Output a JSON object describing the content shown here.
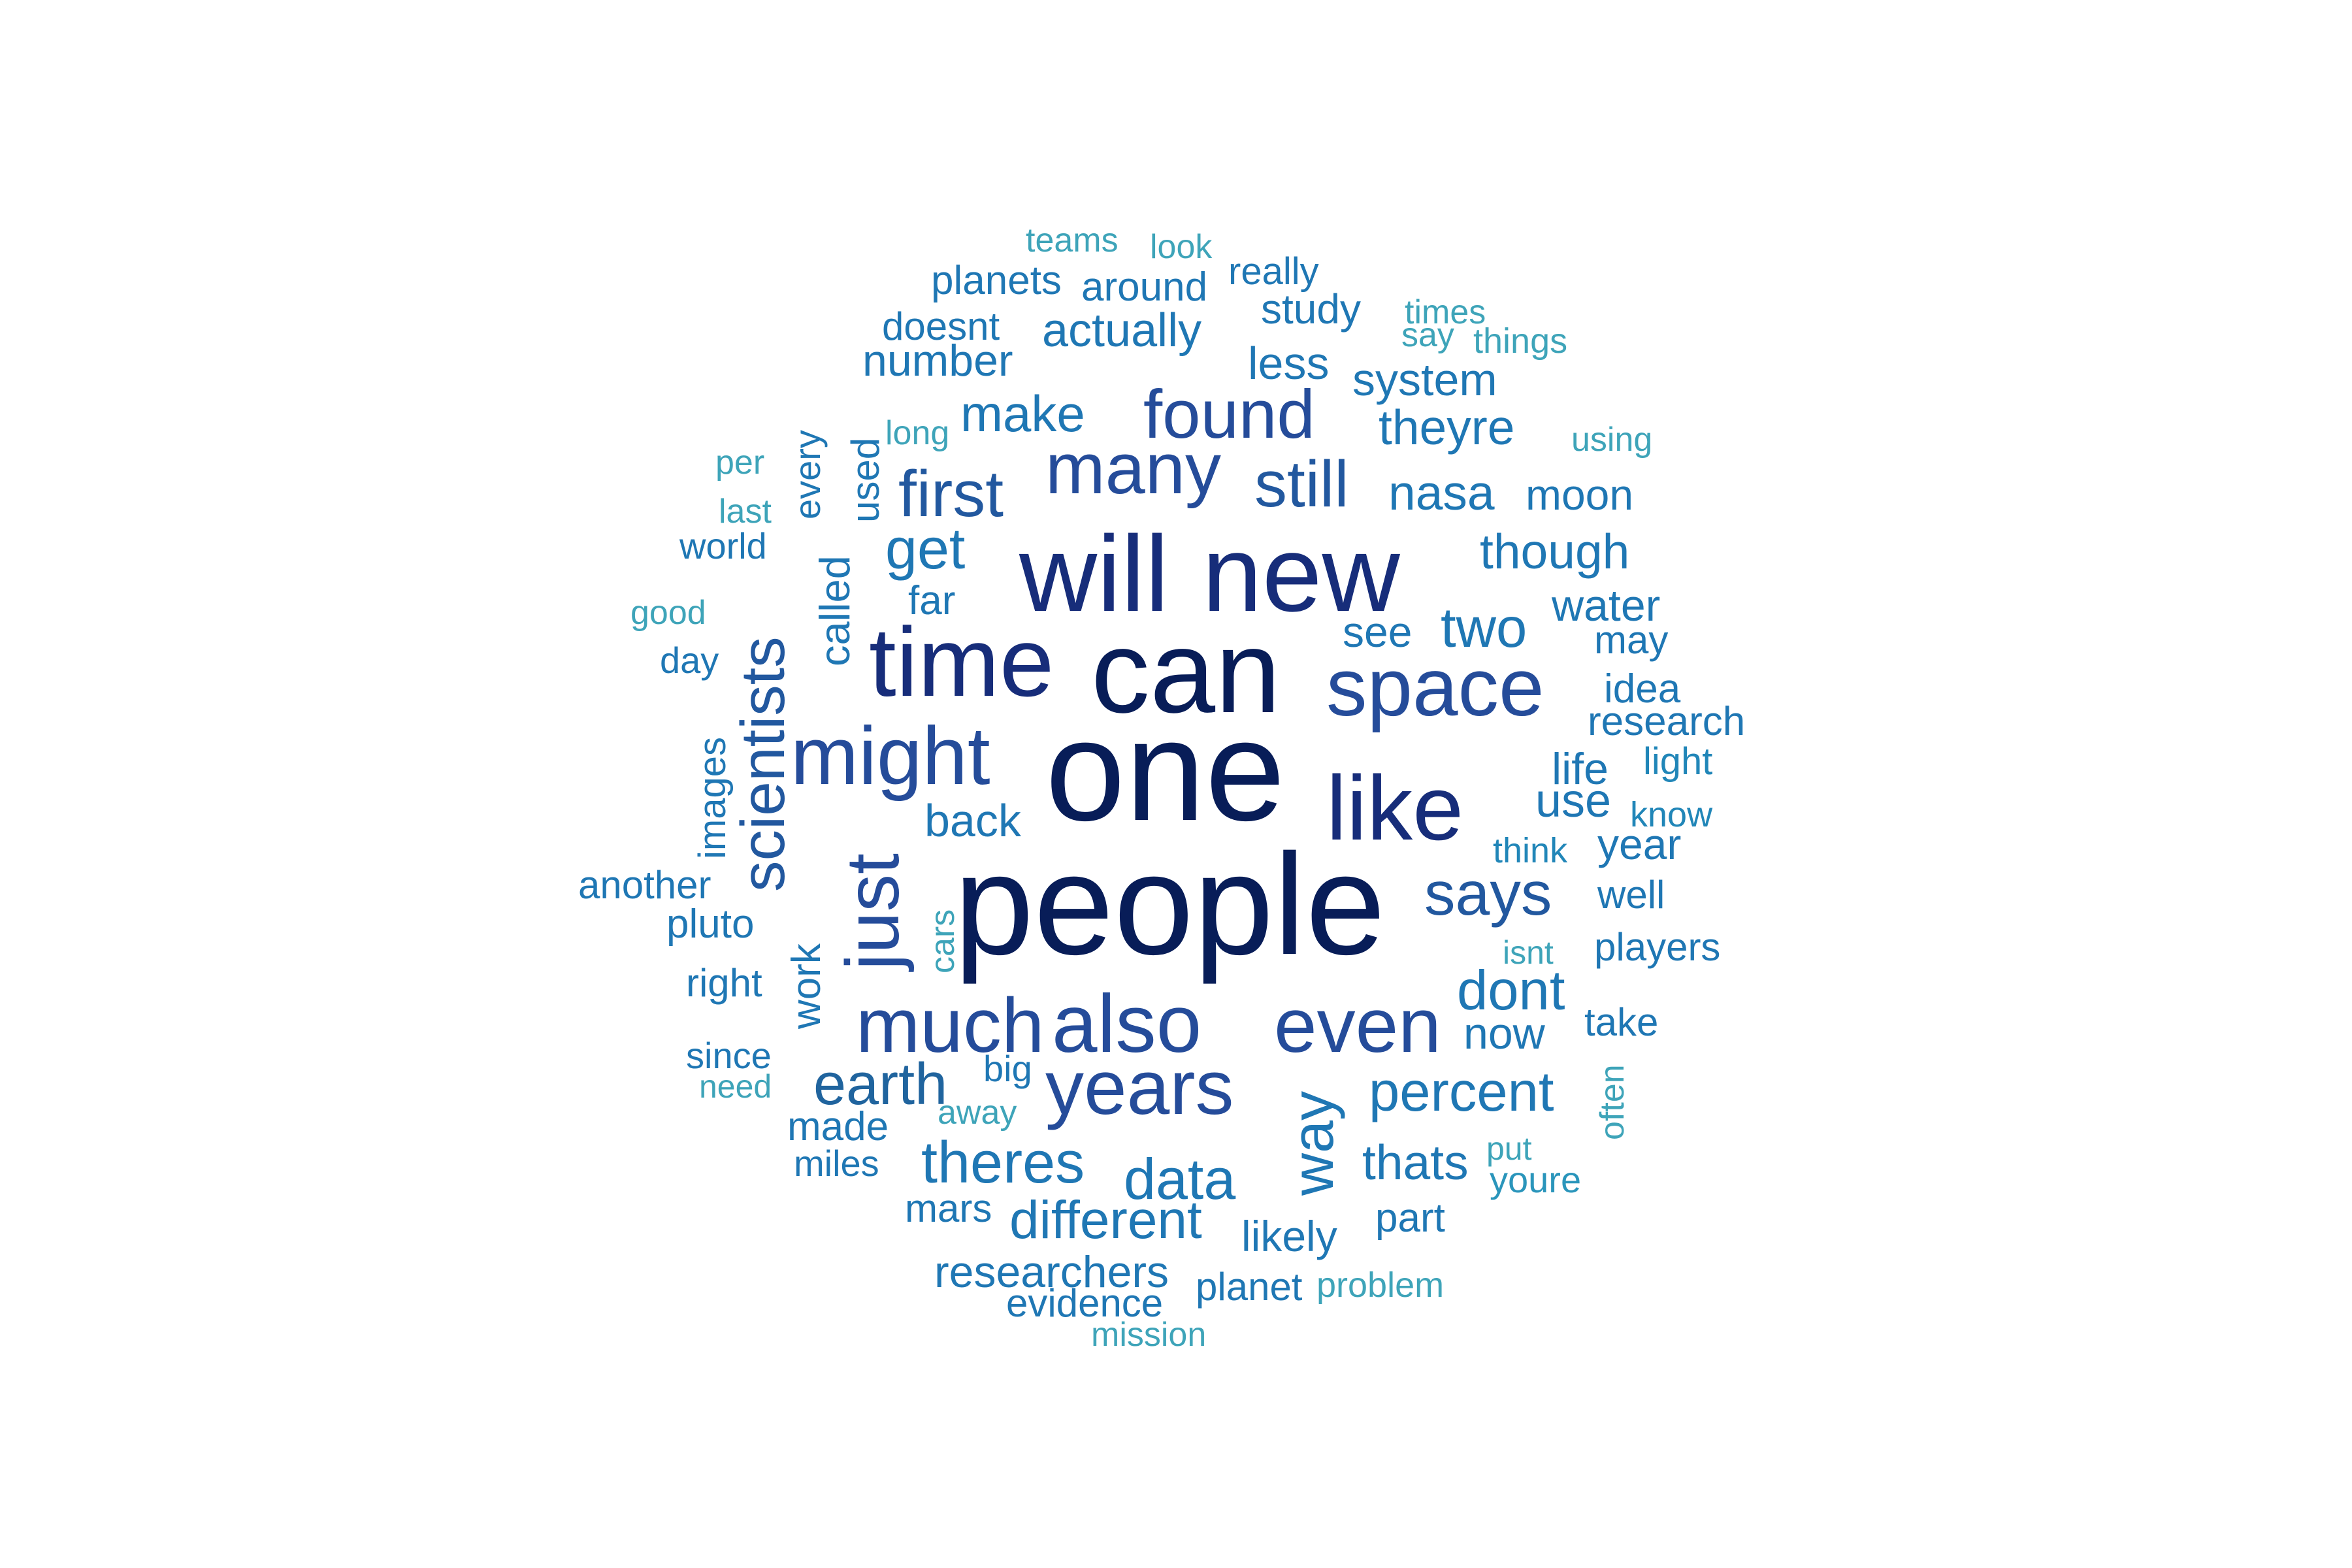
{
  "palette": {
    "c0": "#081d58",
    "c1": "#172d7a",
    "c2": "#233e8b",
    "c3": "#254c9a",
    "c4": "#22589f",
    "c5": "#20649e",
    "c6": "#1f77b4",
    "c7": "#2186b8",
    "c8": "#2a95bb",
    "c9": "#3ea4b9"
  },
  "words": [
    {
      "text": "people",
      "size": 220,
      "color": "c0"
    },
    {
      "text": "one",
      "size": 220,
      "color": "c0"
    },
    {
      "text": "can",
      "size": 180,
      "color": "c0"
    },
    {
      "text": "new",
      "size": 165,
      "color": "c1"
    },
    {
      "text": "will",
      "size": 165,
      "color": "c1"
    },
    {
      "text": "time",
      "size": 150,
      "color": "c1"
    },
    {
      "text": "like",
      "size": 140,
      "color": "c1"
    },
    {
      "text": "space",
      "size": 125,
      "color": "c3"
    },
    {
      "text": "might",
      "size": 125,
      "color": "c3"
    },
    {
      "text": "also",
      "size": 125,
      "color": "c3"
    },
    {
      "text": "much",
      "size": 118,
      "color": "c3"
    },
    {
      "text": "even",
      "size": 118,
      "color": "c3"
    },
    {
      "text": "years",
      "size": 118,
      "color": "c3"
    },
    {
      "text": "just",
      "size": 115,
      "color": "c3"
    },
    {
      "text": "many",
      "size": 110,
      "color": "c3"
    },
    {
      "text": "found",
      "size": 105,
      "color": "c3"
    },
    {
      "text": "first",
      "size": 100,
      "color": "c4"
    },
    {
      "text": "still",
      "size": 100,
      "color": "c4"
    },
    {
      "text": "scientists",
      "size": 95,
      "color": "c4"
    },
    {
      "text": "says",
      "size": 95,
      "color": "c4"
    },
    {
      "text": "earth",
      "size": 90,
      "color": "c5"
    },
    {
      "text": "way",
      "size": 90,
      "color": "c6"
    },
    {
      "text": "theres",
      "size": 90,
      "color": "c6"
    },
    {
      "text": "get",
      "size": 88,
      "color": "c6"
    },
    {
      "text": "data",
      "size": 88,
      "color": "c6"
    },
    {
      "text": "percent",
      "size": 85,
      "color": "c6"
    },
    {
      "text": "dont",
      "size": 85,
      "color": "c6"
    },
    {
      "text": "two",
      "size": 85,
      "color": "c6"
    },
    {
      "text": "different",
      "size": 82,
      "color": "c6"
    },
    {
      "text": "make",
      "size": 78,
      "color": "c6"
    },
    {
      "text": "thats",
      "size": 75,
      "color": "c6"
    },
    {
      "text": "nasa",
      "size": 75,
      "color": "c6"
    },
    {
      "text": "though",
      "size": 75,
      "color": "c6"
    },
    {
      "text": "theyre",
      "size": 75,
      "color": "c6"
    },
    {
      "text": "actually",
      "size": 72,
      "color": "c6"
    },
    {
      "text": "use",
      "size": 72,
      "color": "c6"
    },
    {
      "text": "back",
      "size": 70,
      "color": "c6"
    },
    {
      "text": "system",
      "size": 70,
      "color": "c6"
    },
    {
      "text": "less",
      "size": 70,
      "color": "c6"
    },
    {
      "text": "number",
      "size": 68,
      "color": "c6"
    },
    {
      "text": "life",
      "size": 68,
      "color": "c6"
    },
    {
      "text": "researchers",
      "size": 68,
      "color": "c6"
    },
    {
      "text": "called",
      "size": 65,
      "color": "c6"
    },
    {
      "text": "now",
      "size": 68,
      "color": "c6"
    },
    {
      "text": "water",
      "size": 68,
      "color": "c6"
    },
    {
      "text": "see",
      "size": 66,
      "color": "c6"
    },
    {
      "text": "moon",
      "size": 66,
      "color": "c6"
    },
    {
      "text": "year",
      "size": 66,
      "color": "c6"
    },
    {
      "text": "likely",
      "size": 66,
      "color": "c6"
    },
    {
      "text": "made",
      "size": 62,
      "color": "c6"
    },
    {
      "text": "research",
      "size": 62,
      "color": "c6"
    },
    {
      "text": "study",
      "size": 64,
      "color": "c6"
    },
    {
      "text": "around",
      "size": 62,
      "color": "c6"
    },
    {
      "text": "planets",
      "size": 62,
      "color": "c6"
    },
    {
      "text": "idea",
      "size": 62,
      "color": "c6"
    },
    {
      "text": "work",
      "size": 62,
      "color": "c6"
    },
    {
      "text": "images",
      "size": 58,
      "color": "c6"
    },
    {
      "text": "pluto",
      "size": 62,
      "color": "c6"
    },
    {
      "text": "far",
      "size": 62,
      "color": "c6"
    },
    {
      "text": "players",
      "size": 60,
      "color": "c6"
    },
    {
      "text": "planet",
      "size": 60,
      "color": "c6"
    },
    {
      "text": "another",
      "size": 60,
      "color": "c6"
    },
    {
      "text": "mars",
      "size": 60,
      "color": "c6"
    },
    {
      "text": "evidence",
      "size": 60,
      "color": "c6"
    },
    {
      "text": "part",
      "size": 62,
      "color": "c6"
    },
    {
      "text": "take",
      "size": 60,
      "color": "c6"
    },
    {
      "text": "doesnt",
      "size": 60,
      "color": "c6"
    },
    {
      "text": "right",
      "size": 60,
      "color": "c6"
    },
    {
      "text": "used",
      "size": 60,
      "color": "c6"
    },
    {
      "text": "may",
      "size": 60,
      "color": "c6"
    },
    {
      "text": "well",
      "size": 60,
      "color": "c6"
    },
    {
      "text": "really",
      "size": 58,
      "color": "c6"
    },
    {
      "text": "miles",
      "size": 56,
      "color": "c6"
    },
    {
      "text": "every",
      "size": 56,
      "color": "c6"
    },
    {
      "text": "world",
      "size": 56,
      "color": "c6"
    },
    {
      "text": "day",
      "size": 56,
      "color": "c6"
    },
    {
      "text": "since",
      "size": 56,
      "color": "c6"
    },
    {
      "text": "big",
      "size": 56,
      "color": "c6"
    },
    {
      "text": "think",
      "size": 54,
      "color": "c7"
    },
    {
      "text": "light",
      "size": 58,
      "color": "c7"
    },
    {
      "text": "know",
      "size": 54,
      "color": "c7"
    },
    {
      "text": "youre",
      "size": 56,
      "color": "c8"
    },
    {
      "text": "problem",
      "size": 54,
      "color": "c9"
    },
    {
      "text": "mission",
      "size": 52,
      "color": "c9"
    },
    {
      "text": "cars",
      "size": 52,
      "color": "c9"
    },
    {
      "text": "often",
      "size": 52,
      "color": "c9"
    },
    {
      "text": "away",
      "size": 52,
      "color": "c9"
    },
    {
      "text": "isnt",
      "size": 50,
      "color": "c9"
    },
    {
      "text": "put",
      "size": 50,
      "color": "c9"
    },
    {
      "text": "need",
      "size": 50,
      "color": "c9"
    },
    {
      "text": "good",
      "size": 52,
      "color": "c9"
    },
    {
      "text": "last",
      "size": 52,
      "color": "c9"
    },
    {
      "text": "per",
      "size": 52,
      "color": "c9"
    },
    {
      "text": "long",
      "size": 52,
      "color": "c9"
    },
    {
      "text": "using",
      "size": 52,
      "color": "c9"
    },
    {
      "text": "things",
      "size": 54,
      "color": "c9"
    },
    {
      "text": "say",
      "size": 52,
      "color": "c9"
    },
    {
      "text": "times",
      "size": 52,
      "color": "c9"
    },
    {
      "text": "look",
      "size": 52,
      "color": "c9"
    },
    {
      "text": "teams",
      "size": 52,
      "color": "c9"
    }
  ]
}
